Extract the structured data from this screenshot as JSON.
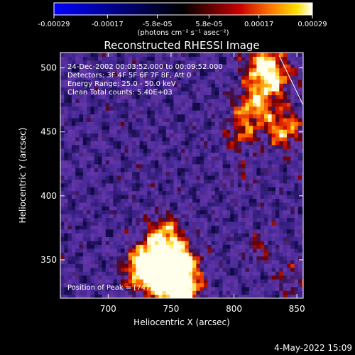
{
  "colorbar": {
    "ticks": [
      "-0.00029",
      "-0.00017",
      "-5.8e-05",
      "5.8e-05",
      "0.00017",
      "0.00029"
    ],
    "unit_label": "(photons cm⁻² s⁻¹ asec⁻²)",
    "range": [
      -0.00029,
      0.00029
    ]
  },
  "chart_data": {
    "type": "heatmap",
    "title": "Reconstructed RHESSI Image",
    "xlabel": "Heliocentric X (arcsec)",
    "ylabel": "Heliocentric Y (arcsec)",
    "xlim": [
      662,
      855
    ],
    "ylim": [
      320,
      512
    ],
    "xticks": [
      700,
      750,
      800,
      850
    ],
    "yticks": [
      350,
      400,
      450,
      500
    ],
    "annotations": [
      "24-Dec-2002 00:03:52.000 to 00:09:52.000",
      "Detectors: 3F 4F 5F 6F 7F 8F, Att 0",
      "Energy Range: 25.0 - 50.0 keV",
      "Clean     Total counts: 5.40E+03"
    ],
    "peak_label": "Position of Peak = [747,334]",
    "hot_regions": [
      {
        "x": 747,
        "y": 334,
        "amp": 1.0,
        "sigma": 14
      },
      {
        "x": 738,
        "y": 352,
        "amp": 0.85,
        "sigma": 12
      },
      {
        "x": 757,
        "y": 348,
        "amp": 0.8,
        "sigma": 11
      },
      {
        "x": 726,
        "y": 342,
        "amp": 0.75,
        "sigma": 10
      },
      {
        "x": 745,
        "y": 372,
        "amp": 0.7,
        "sigma": 10
      },
      {
        "x": 760,
        "y": 325,
        "amp": 0.75,
        "sigma": 10
      },
      {
        "x": 830,
        "y": 492,
        "amp": 0.85,
        "sigma": 12
      },
      {
        "x": 815,
        "y": 470,
        "amp": 0.8,
        "sigma": 11
      },
      {
        "x": 840,
        "y": 452,
        "amp": 0.8,
        "sigma": 11
      },
      {
        "x": 822,
        "y": 505,
        "amp": 0.7,
        "sigma": 10
      },
      {
        "x": 805,
        "y": 448,
        "amp": 0.55,
        "sigma": 9
      },
      {
        "x": 820,
        "y": 360,
        "amp": 0.4,
        "sigma": 8
      },
      {
        "x": 845,
        "y": 335,
        "amp": 0.4,
        "sigma": 9
      },
      {
        "x": 805,
        "y": 415,
        "amp": 0.3,
        "sigma": 8
      }
    ]
  },
  "timestamp": "4-May-2022 15:09"
}
